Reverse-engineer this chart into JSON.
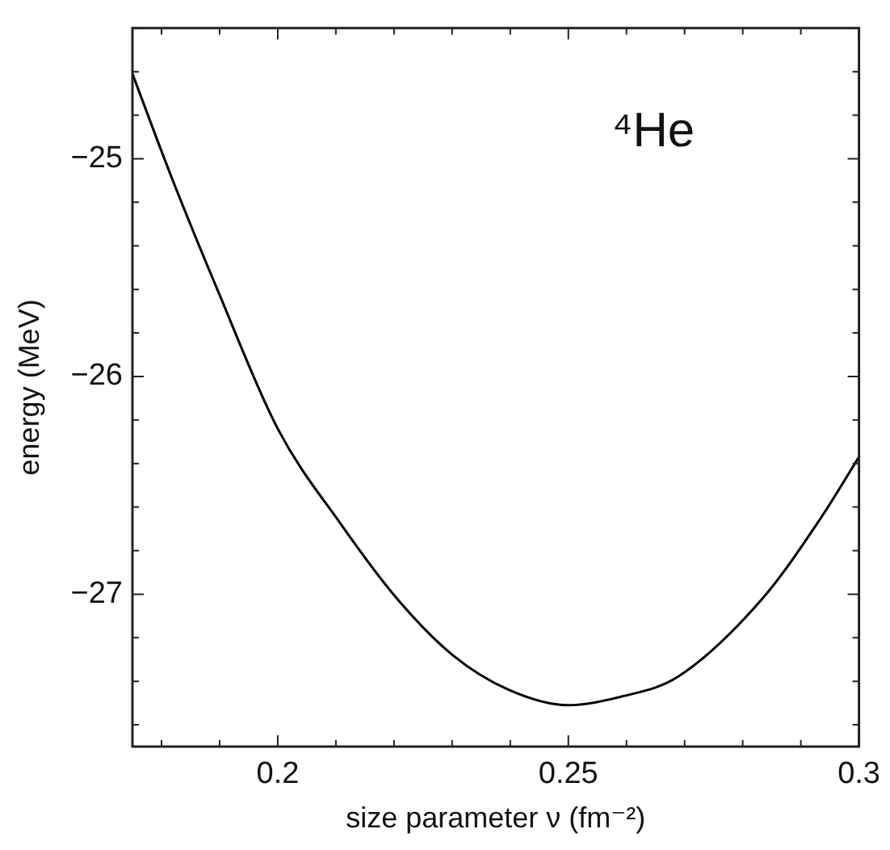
{
  "chart_data": {
    "type": "line",
    "xlabel": "size parameter ν (fm⁻²)",
    "ylabel": "energy (MeV)",
    "annotations": [
      "⁴He"
    ],
    "x": [
      0.175,
      0.1818,
      0.1896,
      0.2,
      0.2109,
      0.2205,
      0.2301,
      0.2398,
      0.25,
      0.2592,
      0.2688,
      0.2834,
      0.2932,
      0.3
    ],
    "series": [
      {
        "color": "#000000",
        "values": [
          -24.61,
          -25.09,
          -25.6,
          -26.24,
          -26.68,
          -27.02,
          -27.28,
          -27.44,
          -27.51,
          -27.47,
          -27.38,
          -27.02,
          -26.66,
          -26.37
        ]
      }
    ],
    "xlim": [
      0.175,
      0.3
    ],
    "ylim": [
      -27.7,
      -24.4
    ],
    "xticks": [
      {
        "value": 0.18,
        "label": null
      },
      {
        "value": 0.19,
        "label": null
      },
      {
        "value": 0.2,
        "label": "0.2"
      },
      {
        "value": 0.21,
        "label": null
      },
      {
        "value": 0.22,
        "label": null
      },
      {
        "value": 0.23,
        "label": null
      },
      {
        "value": 0.24,
        "label": null
      },
      {
        "value": 0.25,
        "label": "0.25"
      },
      {
        "value": 0.26,
        "label": null
      },
      {
        "value": 0.27,
        "label": null
      },
      {
        "value": 0.28,
        "label": null
      },
      {
        "value": 0.29,
        "label": null
      },
      {
        "value": 0.3,
        "label": "0.3"
      }
    ],
    "yticks": [
      {
        "value": -27.6,
        "label": null
      },
      {
        "value": -27.4,
        "label": null
      },
      {
        "value": -27.2,
        "label": null
      },
      {
        "value": -27,
        "label": "−27"
      },
      {
        "value": -26.8,
        "label": null
      },
      {
        "value": -26.6,
        "label": null
      },
      {
        "value": -26.4,
        "label": null
      },
      {
        "value": -26.2,
        "label": null
      },
      {
        "value": -26,
        "label": "−26"
      },
      {
        "value": -25.8,
        "label": null
      },
      {
        "value": -25.6,
        "label": null
      },
      {
        "value": -25.4,
        "label": null
      },
      {
        "value": -25.2,
        "label": null
      },
      {
        "value": -25,
        "label": "−25"
      },
      {
        "value": -24.8,
        "label": null
      },
      {
        "value": -24.6,
        "label": null
      },
      {
        "value": -24.4,
        "label": null
      }
    ],
    "grid": false,
    "legend": false,
    "marker": "none",
    "line_style": "solid"
  }
}
